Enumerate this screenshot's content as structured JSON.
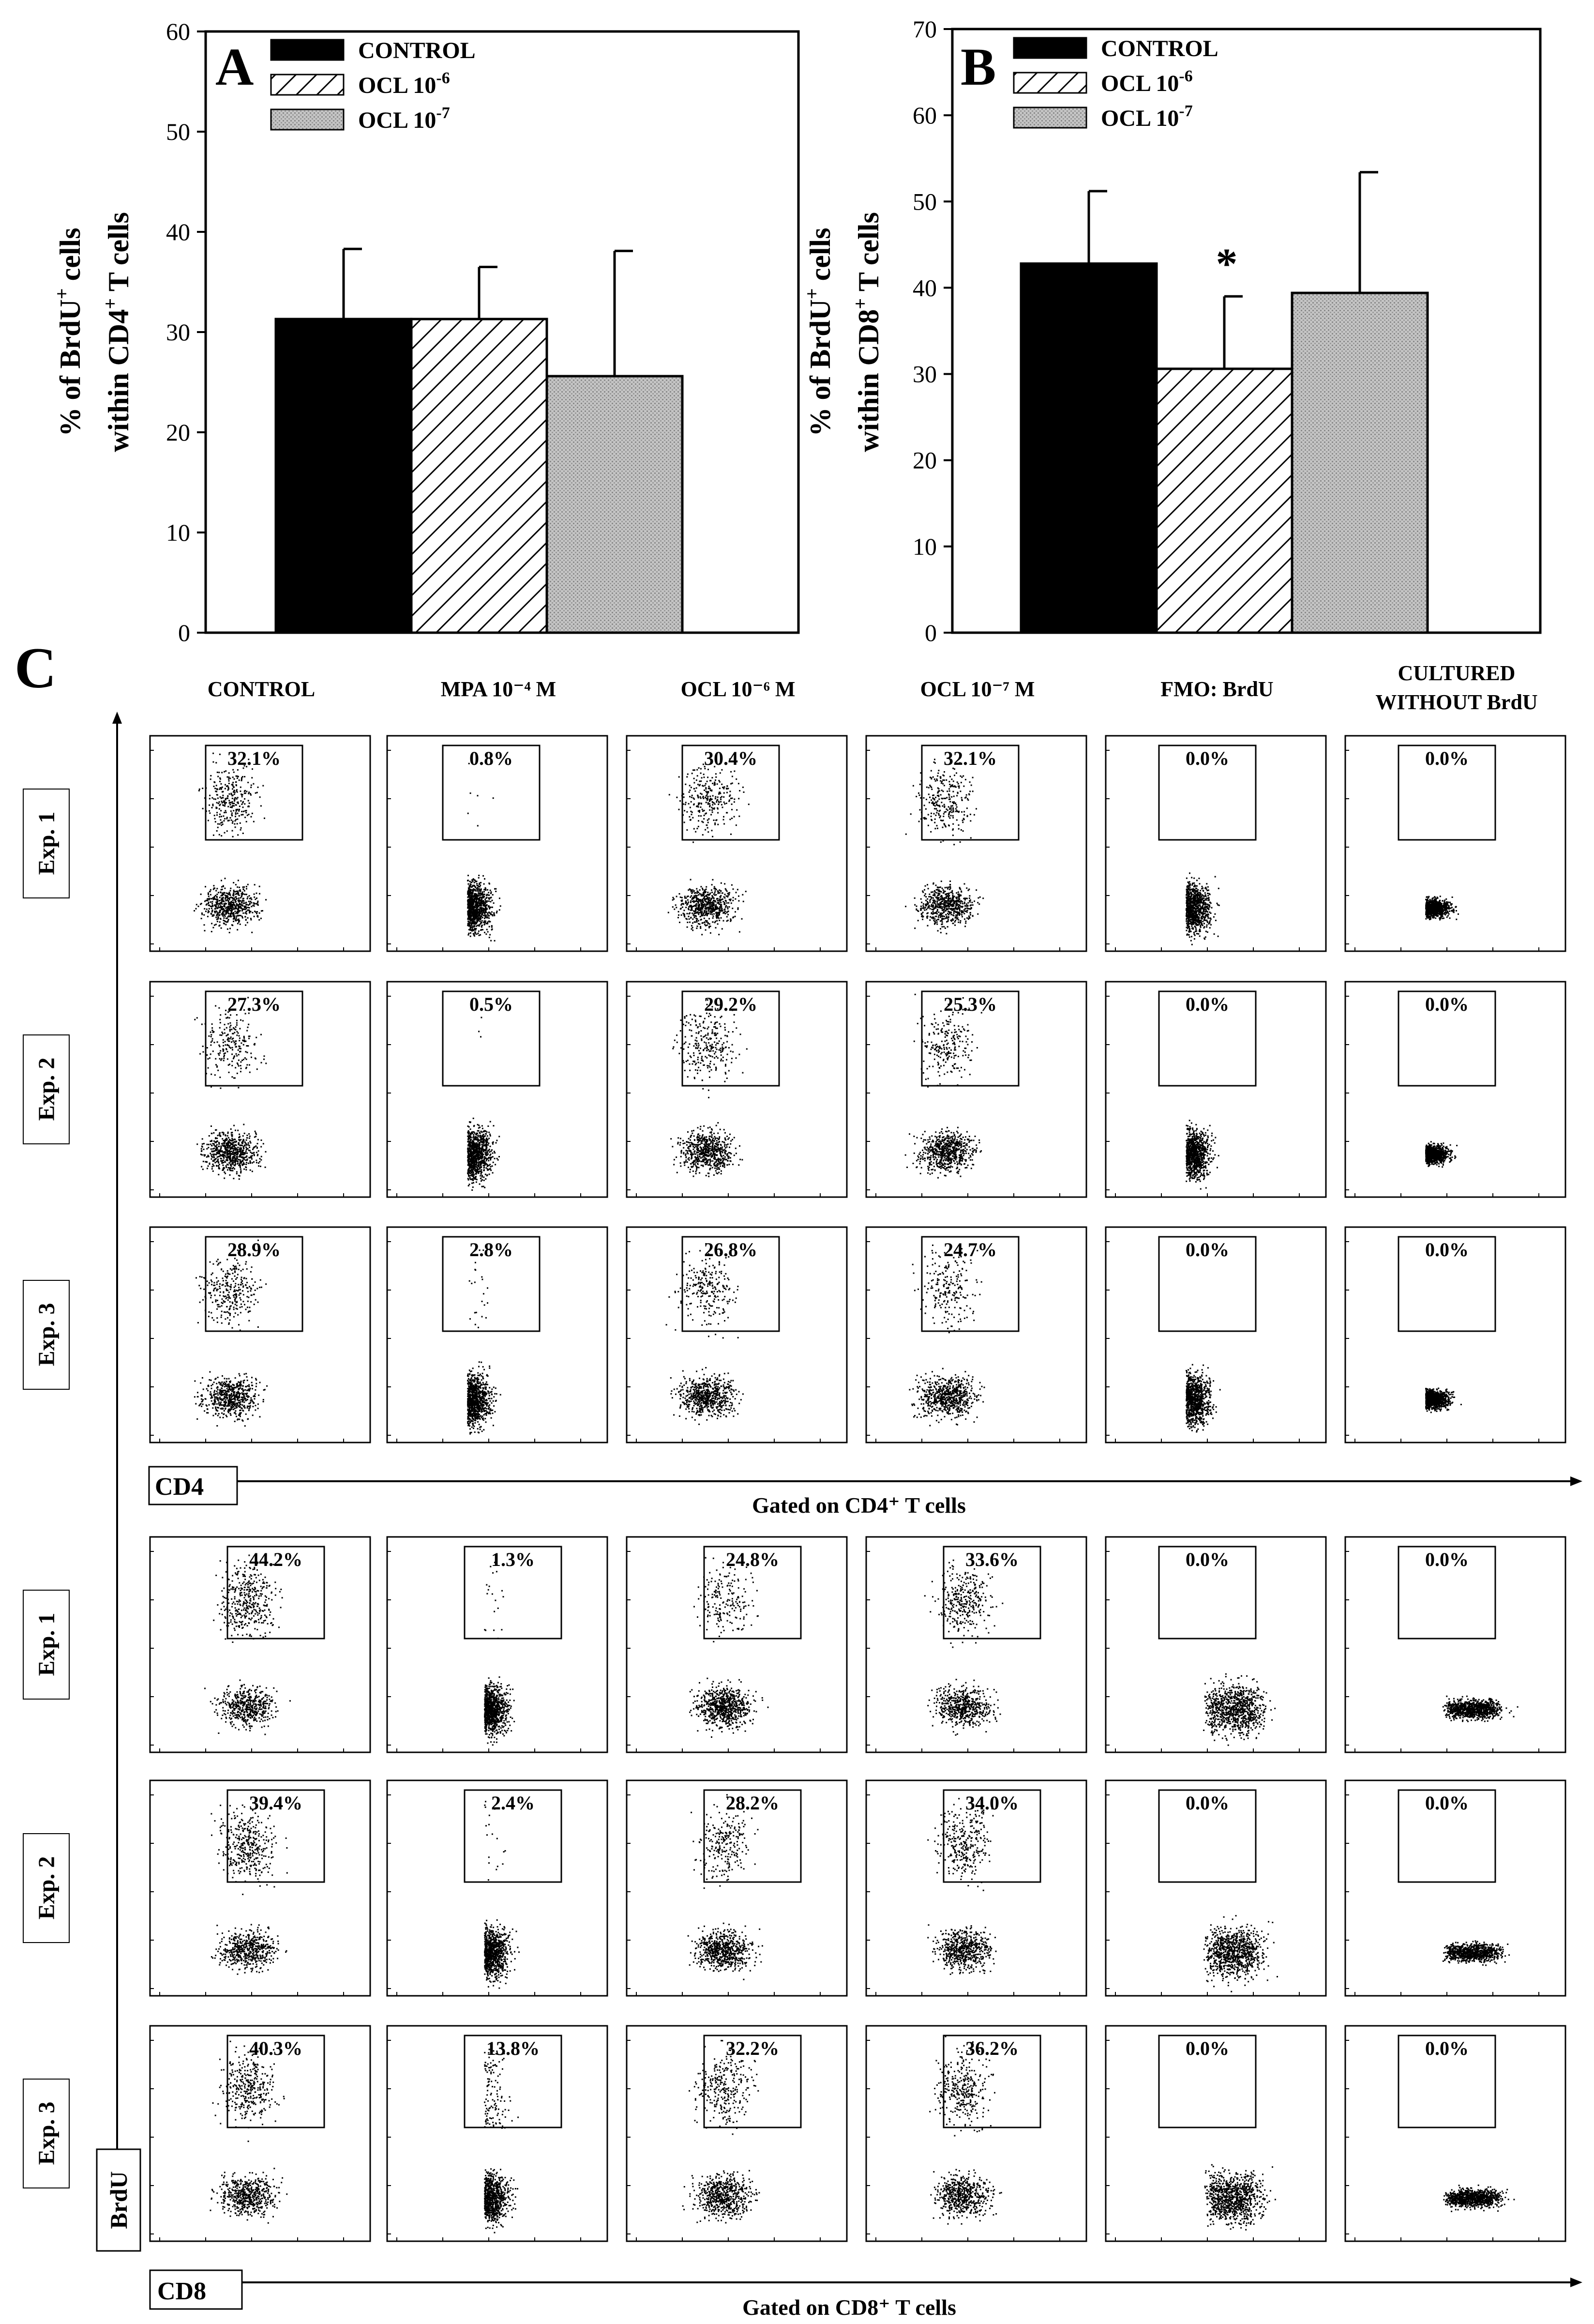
{
  "chart_data": [
    {
      "panel": "A",
      "type": "bar",
      "categories": [
        "CONTROL",
        "OCL 10-6",
        "OCL 10-7"
      ],
      "values": [
        31.3,
        31.3,
        25.6
      ],
      "errors": [
        7.0,
        5.2,
        12.5
      ],
      "legend": [
        "CONTROL",
        "OCL 10",
        "OCL 10"
      ],
      "legend_exponents": [
        "-6",
        "-7"
      ],
      "ylabel_line1_pre": "% of  BrdU",
      "ylabel_line1_sup": "+",
      "ylabel_line1_post": " cells",
      "ylabel_line2_pre": "within CD4",
      "ylabel_line2_sup": "+",
      "ylabel_line2_post": " T cells",
      "ylim": [
        0,
        60
      ],
      "yticks": [
        "0",
        "10",
        "20",
        "30",
        "40",
        "50",
        "60"
      ],
      "annotations": [],
      "legend_position": "top-left"
    },
    {
      "panel": "B",
      "type": "bar",
      "categories": [
        "CONTROL",
        "OCL 10-6",
        "OCL 10-7"
      ],
      "values": [
        42.8,
        30.6,
        39.4
      ],
      "errors": [
        8.4,
        8.4,
        14.0
      ],
      "legend": [
        "CONTROL",
        "OCL 10",
        "OCL 10"
      ],
      "legend_exponents": [
        "-6",
        "-7"
      ],
      "ylabel_line1_pre": "% of  BrdU",
      "ylabel_line1_sup": "+",
      "ylabel_line1_post": " cells",
      "ylabel_line2_pre": "within CD8",
      "ylabel_line2_sup": "+",
      "ylabel_line2_post": " T cells",
      "ylim": [
        0,
        70
      ],
      "yticks": [
        "0",
        "10",
        "20",
        "30",
        "40",
        "50",
        "60",
        "70"
      ],
      "annotations": [
        "*"
      ],
      "legend_position": "top-left"
    },
    {
      "panel": "C",
      "type": "scatter",
      "columns": [
        "CONTROL",
        "MPA 10⁻⁴ M",
        "OCL 10⁻⁶ M",
        "OCL 10⁻⁷ M",
        "FMO: BrdU",
        "CULTURED",
        "WITHOUT BrdU"
      ],
      "cd4": {
        "rows": [
          "Exp. 1",
          "Exp. 2",
          "Exp. 3"
        ],
        "values": [
          [
            "32.1%",
            "0.8%",
            "30.4%",
            "32.1%",
            "0.0%",
            "0.0%"
          ],
          [
            "27.3%",
            "0.5%",
            "29.2%",
            "25.3%",
            "0.0%",
            "0.0%"
          ],
          [
            "28.9%",
            "2.8%",
            "26.8%",
            "24.7%",
            "0.0%",
            "0.0%"
          ]
        ],
        "x_axis": "CD4",
        "gate": "Gated on CD4⁺ T cells"
      },
      "cd8": {
        "rows": [
          "Exp. 1",
          "Exp. 2",
          "Exp. 3"
        ],
        "values": [
          [
            "44.2%",
            "1.3%",
            "24.8%",
            "33.6%",
            "0.0%",
            "0.0%"
          ],
          [
            "39.4%",
            "2.4%",
            "28.2%",
            "34.0%",
            "0.0%",
            "0.0%"
          ],
          [
            "40.3%",
            "13.8%",
            "32.2%",
            "36.2%",
            "0.0%",
            "0.0%"
          ]
        ],
        "x_axis": "CD8",
        "gate": "Gated on CD8⁺ T cells"
      },
      "y_axis": "BrdU",
      "panel_label": "C"
    }
  ],
  "colors": {
    "bar_control": "#000000",
    "bar_ocl7": "#bdbdbd",
    "ink": "#000000"
  }
}
